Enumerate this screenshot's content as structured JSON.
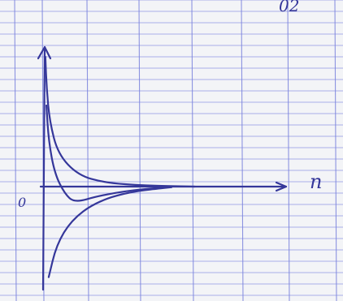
{
  "chart_data": {
    "type": "line",
    "title": "",
    "xlabel": "n",
    "ylabel": "",
    "x_tick_labels": [
      "0"
    ],
    "grid": true,
    "series": [
      {
        "x": [
          0.02,
          0.06,
          0.15,
          0.4,
          1.0,
          1.8,
          3.0,
          4.5
        ],
        "values": [
          4.0,
          3.0,
          2.0,
          1.0,
          0.35,
          0.12,
          0.03,
          0.0
        ]
      },
      {
        "x": [
          0.05,
          0.12,
          0.3,
          0.6,
          0.9,
          1.6,
          2.6,
          3.8
        ],
        "values": [
          2.5,
          1.4,
          0.4,
          -0.25,
          -0.55,
          -0.32,
          -0.12,
          -0.01
        ]
      },
      {
        "x": [
          0.12,
          0.35,
          0.8,
          1.5,
          2.5,
          3.8
        ],
        "values": [
          -3.1,
          -2.0,
          -1.15,
          -0.55,
          -0.18,
          -0.02
        ]
      }
    ]
  },
  "handwritten": {
    "top_right_mark": "02"
  }
}
